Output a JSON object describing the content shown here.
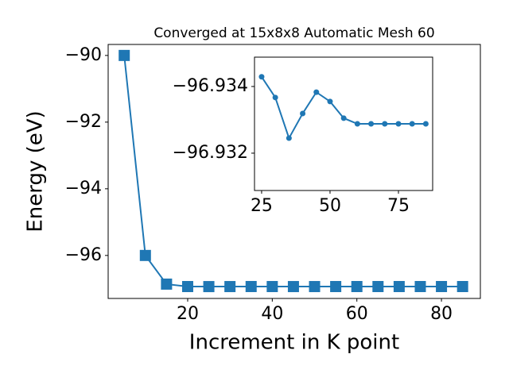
{
  "chart_data": [
    {
      "type": "line",
      "title": "Converged at 15x8x8 Automatic Mesh 60",
      "x_label": "Increment in K point",
      "y_label": "Energy (eV)",
      "x": [
        5,
        10,
        15,
        20,
        25,
        30,
        35,
        40,
        45,
        50,
        55,
        60,
        65,
        70,
        75,
        80,
        85
      ],
      "series": [
        {
          "color": "#1f77b4",
          "marker": "square",
          "values": [
            -90.0,
            -96.0,
            -96.86,
            -96.933,
            -96.93429,
            -96.93367,
            -96.93245,
            -96.93319,
            -96.93383,
            -96.93355,
            -96.93305,
            -96.93288,
            -96.93288,
            -96.93288,
            -96.93288,
            -96.93288,
            -96.93288
          ]
        }
      ],
      "xlim": [
        1.2,
        89.2
      ],
      "ylim": [
        -97.29,
        -89.67
      ],
      "xticks": [
        20,
        40,
        60,
        80
      ],
      "yticks": [
        {
          "value": -90,
          "label": "−90"
        },
        {
          "value": -92,
          "label": "−92"
        },
        {
          "value": -94,
          "label": "−94"
        },
        {
          "value": -96,
          "label": "−96"
        }
      ]
    },
    {
      "type": "line",
      "x": [
        25,
        30,
        35,
        40,
        45,
        50,
        55,
        60,
        65,
        70,
        75,
        80,
        85
      ],
      "series": [
        {
          "color": "#1f77b4",
          "marker": "circle",
          "values": [
            -96.93429,
            -96.93367,
            -96.93245,
            -96.93319,
            -96.93383,
            -96.93355,
            -96.93305,
            -96.93288,
            -96.93288,
            -96.93288,
            -96.93288,
            -96.93288,
            -96.93288
          ]
        }
      ],
      "xlim": [
        22.4,
        87.5
      ],
      "ylim": [
        -96.93088,
        -96.93488
      ],
      "xticks": [
        25,
        50,
        75
      ],
      "yticks": [
        {
          "value": -96.934,
          "label": "−96.934"
        },
        {
          "value": -96.932,
          "label": "−96.932"
        }
      ]
    }
  ]
}
